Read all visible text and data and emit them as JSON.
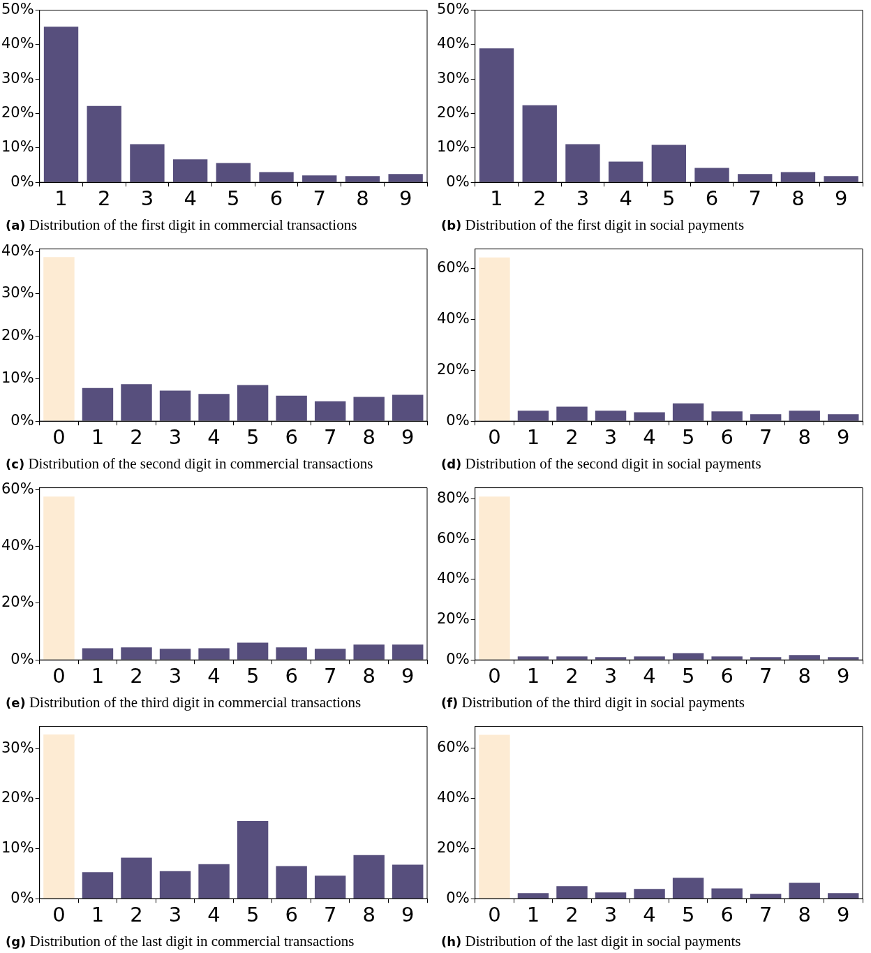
{
  "chart_data": [
    {
      "type": "bar",
      "title": "(a) Distribution of the first digit in commercial transactions",
      "categories": [
        "1",
        "2",
        "3",
        "4",
        "5",
        "6",
        "7",
        "8",
        "9"
      ],
      "values": [
        45.2,
        22.2,
        11.1,
        6.7,
        5.6,
        3.0,
        2.0,
        1.8,
        2.4
      ],
      "color": "#574f7d",
      "ylim": [
        0,
        50
      ],
      "yticks": [
        {
          "value": 0,
          "label": "0%"
        },
        {
          "value": 10,
          "label": "10%"
        },
        {
          "value": 20,
          "label": "20%"
        },
        {
          "value": 30,
          "label": "30%"
        },
        {
          "value": 40,
          "label": "40%"
        },
        {
          "value": 50,
          "label": "50%"
        }
      ]
    },
    {
      "type": "bar",
      "title": "(b) Distribution of the first digit in social payments",
      "categories": [
        "1",
        "2",
        "3",
        "4",
        "5",
        "6",
        "7",
        "8",
        "9"
      ],
      "values": [
        38.9,
        22.4,
        11.1,
        6.0,
        10.9,
        4.2,
        2.4,
        3.0,
        1.8
      ],
      "color": "#574f7d",
      "ylim": [
        0,
        50
      ],
      "yticks": [
        {
          "value": 0,
          "label": "0%"
        },
        {
          "value": 10,
          "label": "10%"
        },
        {
          "value": 20,
          "label": "20%"
        },
        {
          "value": 30,
          "label": "30%"
        },
        {
          "value": 40,
          "label": "40%"
        },
        {
          "value": 50,
          "label": "50%"
        }
      ]
    },
    {
      "type": "bar",
      "title": "(c) Distribution of the second digit in commercial transactions",
      "categories": [
        "0",
        "1",
        "2",
        "3",
        "4",
        "5",
        "6",
        "7",
        "8",
        "9"
      ],
      "values": [
        38.7,
        7.8,
        8.7,
        7.2,
        6.4,
        8.5,
        6.0,
        4.7,
        5.7,
        6.2
      ],
      "colors": [
        "#fdebd3",
        "#574f7d",
        "#574f7d",
        "#574f7d",
        "#574f7d",
        "#574f7d",
        "#574f7d",
        "#574f7d",
        "#574f7d",
        "#574f7d"
      ],
      "ylim": [
        0,
        40.6
      ],
      "yticks": [
        {
          "value": 0,
          "label": "0%"
        },
        {
          "value": 10,
          "label": "10%"
        },
        {
          "value": 20,
          "label": "20%"
        },
        {
          "value": 30,
          "label": "30%"
        },
        {
          "value": 40,
          "label": "40%"
        }
      ]
    },
    {
      "type": "bar",
      "title": "(d) Distribution of the second digit in social payments",
      "categories": [
        "0",
        "1",
        "2",
        "3",
        "4",
        "5",
        "6",
        "7",
        "8",
        "9"
      ],
      "values": [
        64.3,
        4.1,
        5.7,
        4.1,
        3.5,
        7.0,
        3.8,
        2.7,
        4.1,
        2.7
      ],
      "colors": [
        "#fdebd3",
        "#574f7d",
        "#574f7d",
        "#574f7d",
        "#574f7d",
        "#574f7d",
        "#574f7d",
        "#574f7d",
        "#574f7d",
        "#574f7d"
      ],
      "ylim": [
        0,
        67.6
      ],
      "yticks": [
        {
          "value": 0,
          "label": "0%"
        },
        {
          "value": 20,
          "label": "20%"
        },
        {
          "value": 40,
          "label": "40%"
        },
        {
          "value": 60,
          "label": "60%"
        }
      ]
    },
    {
      "type": "bar",
      "title": "(e) Distribution of the third digit in commercial transactions",
      "categories": [
        "0",
        "1",
        "2",
        "3",
        "4",
        "5",
        "6",
        "7",
        "8",
        "9"
      ],
      "values": [
        57.6,
        4.1,
        4.4,
        3.9,
        4.1,
        6.1,
        4.4,
        3.9,
        5.4,
        5.4
      ],
      "colors": [
        "#fdebd3",
        "#574f7d",
        "#574f7d",
        "#574f7d",
        "#574f7d",
        "#574f7d",
        "#574f7d",
        "#574f7d",
        "#574f7d",
        "#574f7d"
      ],
      "ylim": [
        0,
        60.7
      ],
      "yticks": [
        {
          "value": 0,
          "label": "0%"
        },
        {
          "value": 20,
          "label": "20%"
        },
        {
          "value": 40,
          "label": "40%"
        },
        {
          "value": 60,
          "label": "60%"
        }
      ]
    },
    {
      "type": "bar",
      "title": "(f) Distribution of the third digit in social payments",
      "categories": [
        "0",
        "1",
        "2",
        "3",
        "4",
        "5",
        "6",
        "7",
        "8",
        "9"
      ],
      "values": [
        81.1,
        1.7,
        1.7,
        1.4,
        1.7,
        3.4,
        1.7,
        1.4,
        2.4,
        1.4
      ],
      "colors": [
        "#fdebd3",
        "#574f7d",
        "#574f7d",
        "#574f7d",
        "#574f7d",
        "#574f7d",
        "#574f7d",
        "#574f7d",
        "#574f7d",
        "#574f7d"
      ],
      "ylim": [
        0,
        85.5
      ],
      "yticks": [
        {
          "value": 0,
          "label": "0%"
        },
        {
          "value": 20,
          "label": "20%"
        },
        {
          "value": 40,
          "label": "40%"
        },
        {
          "value": 60,
          "label": "60%"
        },
        {
          "value": 80,
          "label": "80%"
        }
      ]
    },
    {
      "type": "bar",
      "title": "(g) Distribution of the last digit in commercial transactions",
      "categories": [
        "0",
        "1",
        "2",
        "3",
        "4",
        "5",
        "6",
        "7",
        "8",
        "9"
      ],
      "values": [
        32.8,
        5.3,
        8.2,
        5.5,
        6.9,
        15.5,
        6.5,
        4.6,
        8.7,
        6.8
      ],
      "colors": [
        "#fdebd3",
        "#574f7d",
        "#574f7d",
        "#574f7d",
        "#574f7d",
        "#574f7d",
        "#574f7d",
        "#574f7d",
        "#574f7d",
        "#574f7d"
      ],
      "ylim": [
        0,
        34.4
      ],
      "yticks": [
        {
          "value": 0,
          "label": "0%"
        },
        {
          "value": 10,
          "label": "10%"
        },
        {
          "value": 20,
          "label": "20%"
        },
        {
          "value": 30,
          "label": "30%"
        }
      ]
    },
    {
      "type": "bar",
      "title": "(h) Distribution of the last digit in social payments",
      "categories": [
        "0",
        "1",
        "2",
        "3",
        "4",
        "5",
        "6",
        "7",
        "8",
        "9"
      ],
      "values": [
        65.3,
        2.2,
        5.0,
        2.5,
        3.9,
        8.3,
        4.1,
        1.9,
        6.3,
        2.2
      ],
      "colors": [
        "#fdebd3",
        "#574f7d",
        "#574f7d",
        "#574f7d",
        "#574f7d",
        "#574f7d",
        "#574f7d",
        "#574f7d",
        "#574f7d",
        "#574f7d"
      ],
      "ylim": [
        0,
        68.6
      ],
      "yticks": [
        {
          "value": 0,
          "label": "0%"
        },
        {
          "value": 20,
          "label": "20%"
        },
        {
          "value": 40,
          "label": "40%"
        },
        {
          "value": 60,
          "label": "60%"
        }
      ]
    }
  ]
}
